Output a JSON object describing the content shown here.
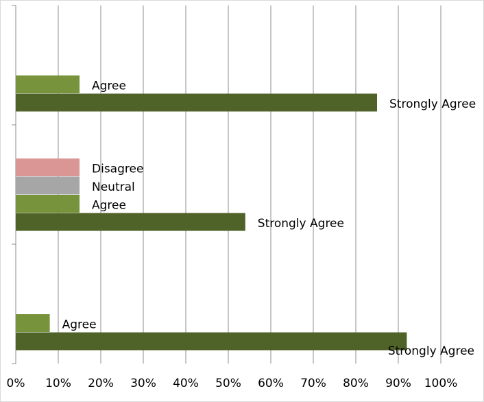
{
  "chart_data": {
    "type": "bar",
    "orientation": "horizontal",
    "categories": [
      null,
      null,
      null
    ],
    "series": [
      {
        "name": "Strongly Agree",
        "color": "#4f6228",
        "values": [
          85,
          54,
          92
        ]
      },
      {
        "name": "Agree",
        "color": "#77933c",
        "values": [
          15,
          15,
          8
        ]
      },
      {
        "name": "Neutral",
        "color": "#a6a6a6",
        "values": [
          null,
          15,
          null
        ]
      },
      {
        "name": "Disagree",
        "color": "#d99694",
        "values": [
          null,
          15,
          null
        ]
      }
    ],
    "xlim": [
      0,
      100
    ],
    "xticks": [
      {
        "value": 0,
        "label": "0%"
      },
      {
        "value": 10,
        "label": "10%"
      },
      {
        "value": 20,
        "label": "20%"
      },
      {
        "value": 30,
        "label": "30%"
      },
      {
        "value": 40,
        "label": "40%"
      },
      {
        "value": 50,
        "label": "50%"
      },
      {
        "value": 60,
        "label": "60%"
      },
      {
        "value": 70,
        "label": "70%"
      },
      {
        "value": 80,
        "label": "80%"
      },
      {
        "value": 90,
        "label": "90%"
      },
      {
        "value": 100,
        "label": "100%"
      }
    ],
    "grid": true
  }
}
